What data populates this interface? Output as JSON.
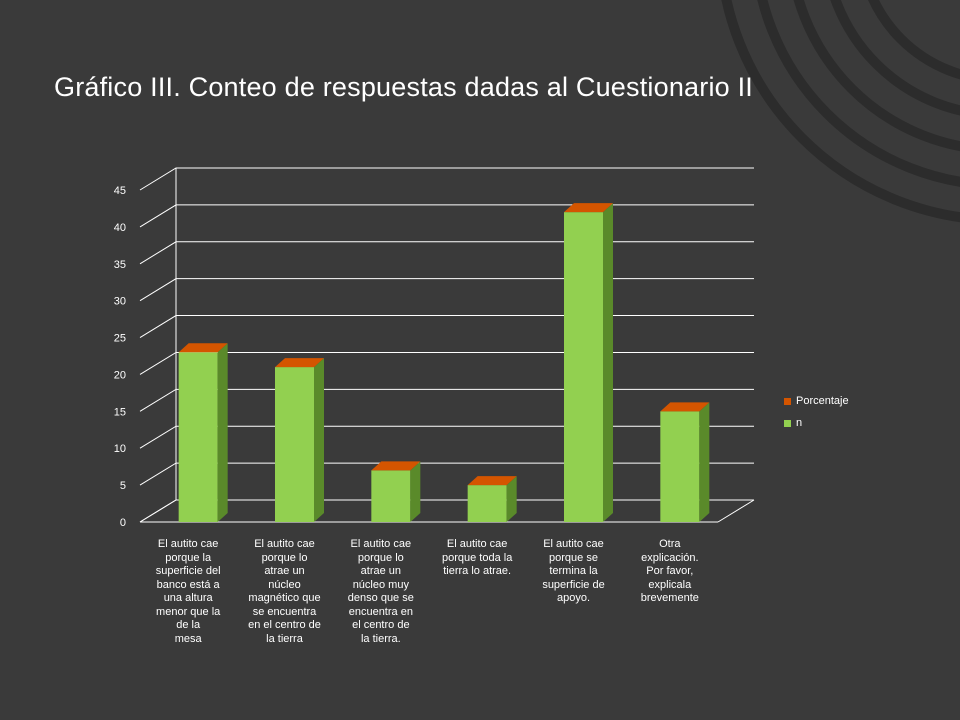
{
  "slide": {
    "title": "Gráfico III. Conteo de respuestas dadas al Cuestionario II"
  },
  "chart_data": {
    "type": "bar",
    "categories": [
      "El autito cae\nporque la\nsuperficie del\nbanco está a\nuna altura\nmenor que la\nde la\nmesa",
      "El autito cae\nporque lo\natrae un\nnúcleo\nmagnético que\nse encuentra\nen el centro de\nla tierra",
      "El autito cae\nporque lo\natrae un\nnúcleo muy\ndenso que se\nencuentra en\nel centro de\nla tierra.",
      "El autito cae\nporque toda la\ntierra lo atrae.",
      "El autito cae\nporque se\ntermina la\nsuperficie de\napoyo.",
      "Otra\nexplicación.\nPor favor,\nexplicala\nbrevemente"
    ],
    "series": [
      {
        "name": "Porcentaje",
        "values": [
          0.5,
          0.5,
          0.5,
          0.5,
          0.5,
          0.5
        ],
        "color": "#d45500"
      },
      {
        "name": "n",
        "values": [
          23,
          21,
          7,
          5,
          42,
          15
        ],
        "color": "#92d050"
      }
    ],
    "ylim": [
      0,
      45
    ],
    "yticks": [
      0,
      5,
      10,
      15,
      20,
      25,
      30,
      35,
      40,
      45
    ],
    "grid": true,
    "legend_position": "right",
    "three_d": true
  },
  "colors": {
    "background": "#3a3a3a",
    "bar_front": "#92d050",
    "bar_side": "#5a8a2a",
    "bar_top": "#d45500",
    "gridline": "#ffffff",
    "text": "#ffffff"
  }
}
